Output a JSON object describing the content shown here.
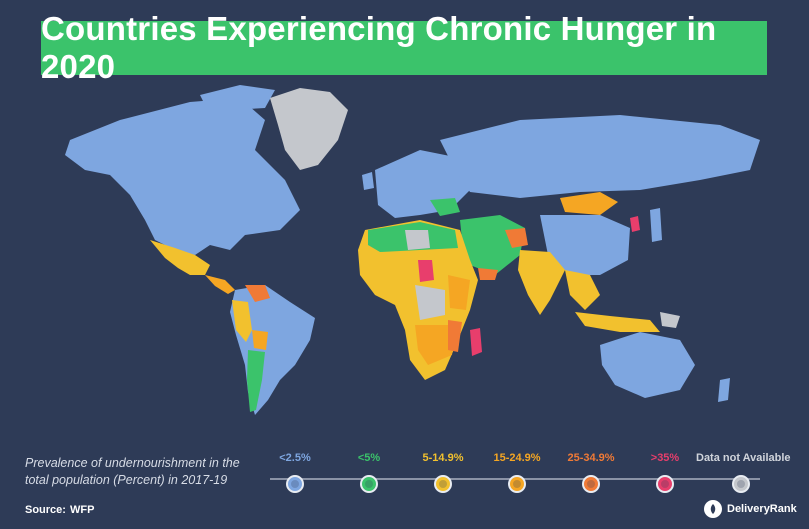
{
  "title": "Countries Experiencing Chronic Hunger in 2020",
  "caption": "Prevalence of undernourishment in the total population (Percent) in 2017-19",
  "source": {
    "label": "Source:",
    "value": "WFP"
  },
  "brand": "DeliveryRank",
  "legend": [
    {
      "label": "<2.5%",
      "color": "#7ea6e0"
    },
    {
      "label": "<5%",
      "color": "#3bc36b"
    },
    {
      "label": "5-14.9%",
      "color": "#f2c12e"
    },
    {
      "label": "15-24.9%",
      "color": "#f5a623"
    },
    {
      "label": "25-34.9%",
      "color": "#f07a36"
    },
    {
      "label": ">35%",
      "color": "#e83e6c"
    },
    {
      "label": "Data not Available",
      "color": "#c4c7cc"
    }
  ],
  "colors": {
    "background": "#2e3b57",
    "title_box": "#3bc36b",
    "low": "#7ea6e0",
    "under5": "#3bc36b",
    "band5_15": "#f2c12e",
    "band15_25": "#f5a623",
    "band25_35": "#f07a36",
    "over35": "#e83e6c",
    "na": "#c4c7cc"
  }
}
